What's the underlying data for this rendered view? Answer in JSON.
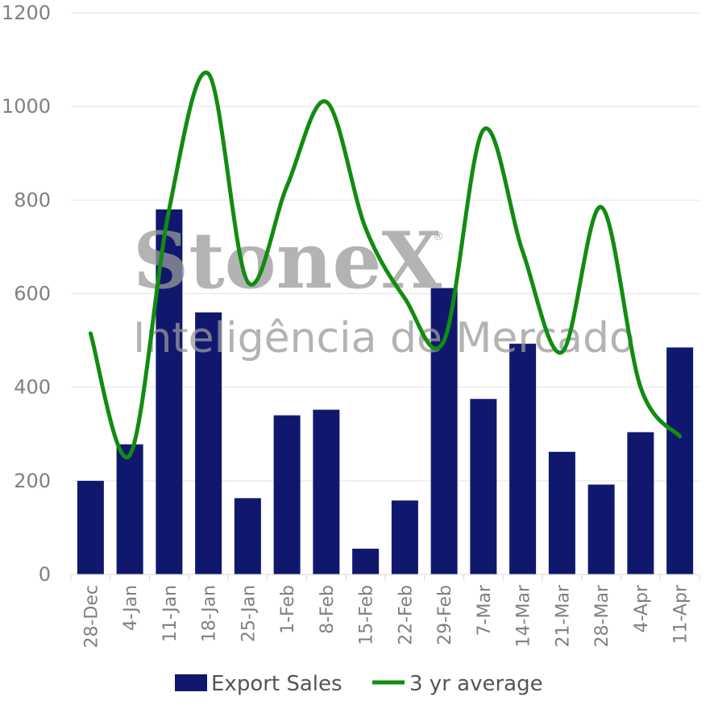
{
  "chart_data": {
    "type": "bar",
    "categories": [
      "28-Dec",
      "4-Jan",
      "11-Jan",
      "18-Jan",
      "25-Jan",
      "1-Feb",
      "8-Feb",
      "15-Feb",
      "22-Feb",
      "29-Feb",
      "7-Mar",
      "14-Mar",
      "21-Mar",
      "28-Mar",
      "4-Apr",
      "11-Apr"
    ],
    "series": [
      {
        "name": "Export Sales",
        "type": "bar",
        "color": "#10186e",
        "values": [
          200,
          278,
          780,
          560,
          163,
          340,
          352,
          55,
          158,
          612,
          375,
          493,
          262,
          192,
          304,
          485
        ]
      },
      {
        "name": "3 yr average",
        "type": "line",
        "smooth": true,
        "color": "#118c11",
        "values": [
          515,
          255,
          780,
          1070,
          625,
          830,
          1010,
          740,
          590,
          500,
          950,
          690,
          475,
          785,
          400,
          295
        ]
      }
    ],
    "ylim": [
      0,
      1200
    ],
    "yticks": [
      0,
      200,
      400,
      600,
      800,
      1000,
      1200
    ],
    "grid": true,
    "legend_position": "bottom"
  },
  "watermark": {
    "logo": "StoneX",
    "registered": "®",
    "subtitle": "Inteligência de Mercado"
  }
}
